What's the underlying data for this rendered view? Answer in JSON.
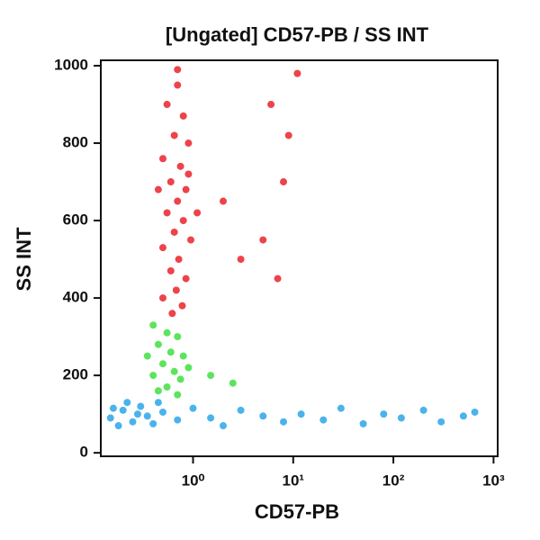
{
  "chart_data": {
    "type": "scatter",
    "title": "[Ungated] CD57-PB / SS INT",
    "x_label": "CD57-PB",
    "y_label": "SS INT",
    "xscale": "log",
    "xlim": [
      0.12,
      1100
    ],
    "ylim": [
      -9,
      1014
    ],
    "xticks": [
      {
        "value": 1,
        "label": "10⁰"
      },
      {
        "value": 10,
        "label": "10¹"
      },
      {
        "value": 100,
        "label": "10²"
      },
      {
        "value": 1000,
        "label": "10³"
      }
    ],
    "yticks": [
      0,
      200,
      400,
      600,
      800,
      1000
    ],
    "series": [
      {
        "color": "#e8141e",
        "x": [
          0.7,
          0.55,
          0.8,
          0.65,
          0.9,
          0.5,
          0.75,
          0.6,
          0.85,
          0.7,
          0.55,
          0.8,
          0.65,
          0.95,
          0.5,
          0.72,
          0.6,
          0.85,
          0.68,
          0.5,
          0.78,
          0.62,
          0.9,
          0.45,
          0.7,
          1.1,
          6,
          8,
          5,
          9,
          7,
          11,
          3,
          2
        ],
        "values": [
          950,
          900,
          870,
          820,
          800,
          760,
          740,
          700,
          680,
          650,
          620,
          600,
          570,
          550,
          530,
          500,
          470,
          450,
          420,
          400,
          380,
          360,
          720,
          680,
          990,
          620,
          900,
          700,
          550,
          820,
          450,
          980,
          500,
          650
        ]
      },
      {
        "color": "#33dd33",
        "x": [
          0.4,
          0.55,
          0.7,
          0.45,
          0.6,
          0.8,
          0.5,
          0.65,
          0.4,
          0.75,
          0.55,
          0.45,
          0.7,
          0.9,
          1.5,
          2.5,
          0.35
        ],
        "values": [
          330,
          310,
          300,
          280,
          260,
          250,
          230,
          210,
          200,
          190,
          170,
          160,
          150,
          220,
          200,
          180,
          250
        ]
      },
      {
        "color": "#1ea0e6",
        "x": [
          0.15,
          0.2,
          0.25,
          0.3,
          0.18,
          0.35,
          0.4,
          0.22,
          0.5,
          0.7,
          1,
          1.5,
          2,
          3,
          5,
          8,
          12,
          20,
          30,
          50,
          80,
          120,
          200,
          300,
          500,
          650,
          0.28,
          0.16,
          0.45
        ],
        "values": [
          90,
          110,
          80,
          120,
          70,
          95,
          75,
          130,
          105,
          85,
          115,
          90,
          70,
          110,
          95,
          80,
          100,
          85,
          115,
          75,
          100,
          90,
          110,
          80,
          95,
          105,
          100,
          115,
          130
        ]
      }
    ]
  }
}
